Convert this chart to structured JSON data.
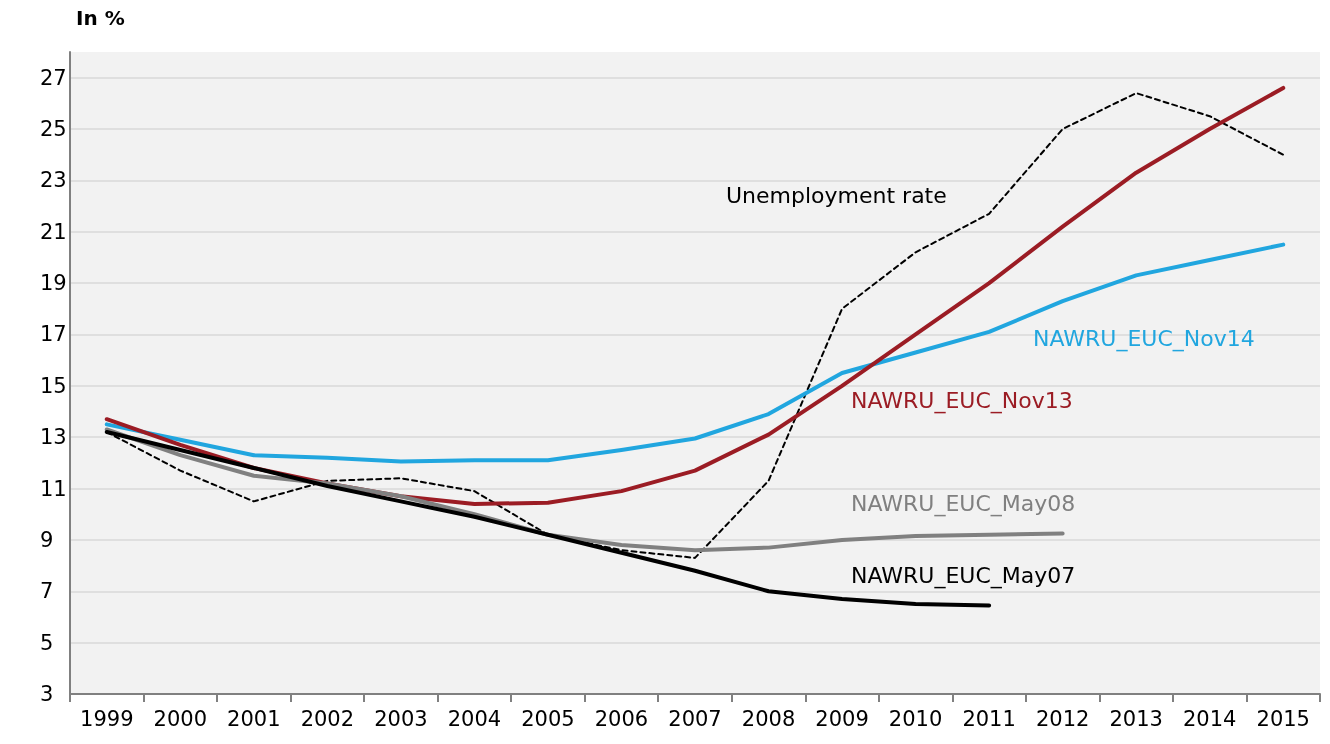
{
  "chart_data": {
    "type": "line",
    "ylabel": "In %",
    "categories": [
      "1999",
      "2000",
      "2001",
      "2002",
      "2003",
      "2004",
      "2005",
      "2006",
      "2007",
      "2008",
      "2009",
      "2010",
      "2011",
      "2012",
      "2013",
      "2014",
      "2015"
    ],
    "ylim": [
      3,
      28
    ],
    "yticks": [
      3,
      5,
      7,
      9,
      11,
      13,
      15,
      17,
      19,
      21,
      23,
      25,
      27
    ],
    "grid": "y",
    "legend": false,
    "marker": "none",
    "series": [
      {
        "name": "Unemployment rate",
        "color": "#000000",
        "line_style": "dashed",
        "values": [
          13.2,
          11.7,
          10.5,
          11.3,
          11.4,
          10.9,
          9.2,
          8.6,
          8.3,
          11.3,
          18.0,
          20.2,
          21.7,
          25.0,
          26.4,
          25.5,
          24.0
        ]
      },
      {
        "name": "NAWRU_EUC_Nov14",
        "color": "#21a6df",
        "line_style": "solid",
        "values": [
          13.5,
          12.9,
          12.3,
          12.2,
          12.05,
          12.1,
          12.1,
          12.5,
          12.95,
          13.9,
          15.5,
          16.3,
          17.1,
          18.3,
          19.3,
          19.9,
          20.5
        ]
      },
      {
        "name": "NAWRU_EUC_Nov13",
        "color": "#9b1c24",
        "line_style": "solid",
        "values": [
          13.7,
          12.7,
          11.8,
          11.2,
          10.7,
          10.4,
          10.45,
          10.9,
          11.7,
          13.1,
          15.0,
          17.0,
          19.0,
          21.2,
          23.3,
          25.0,
          26.6
        ]
      },
      {
        "name": "NAWRU_EUC_May08",
        "color": "#808080",
        "line_style": "solid",
        "values": [
          13.3,
          12.3,
          11.5,
          11.2,
          10.7,
          10.0,
          9.2,
          8.8,
          8.6,
          8.7,
          9.0,
          9.15,
          9.2,
          9.25,
          null,
          null,
          null
        ]
      },
      {
        "name": "NAWRU_EUC_May07",
        "color": "#000000",
        "line_style": "solid",
        "values": [
          13.2,
          12.5,
          11.8,
          11.1,
          10.5,
          9.9,
          9.2,
          8.5,
          7.8,
          7.0,
          6.7,
          6.5,
          6.45,
          null,
          null,
          null,
          null
        ]
      }
    ]
  }
}
